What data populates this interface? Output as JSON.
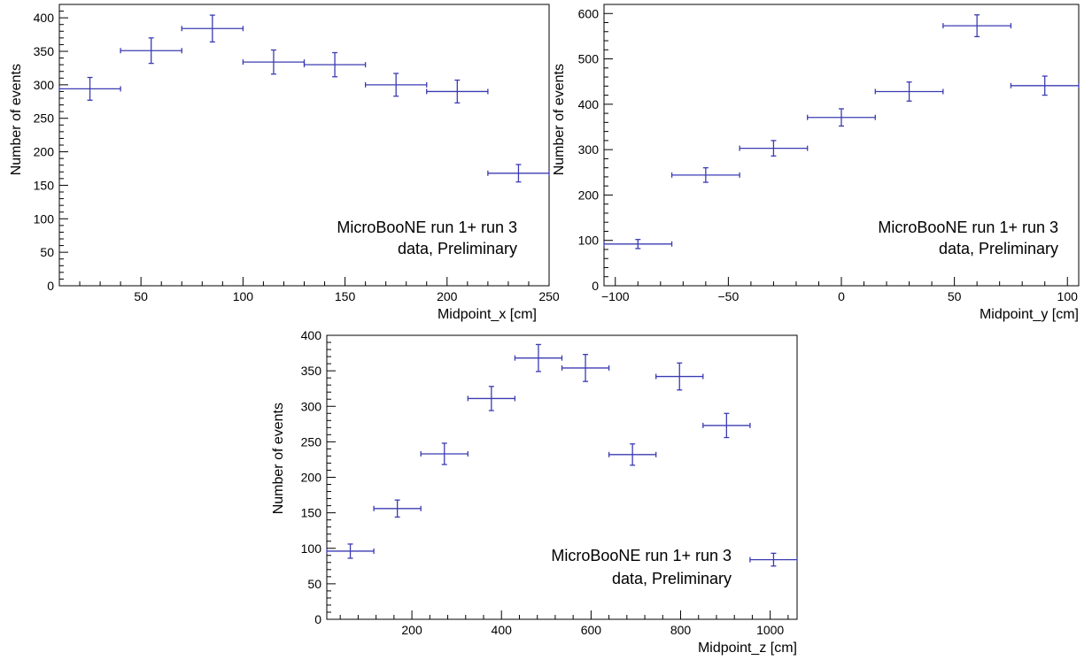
{
  "chart_data": [
    {
      "type": "scatter",
      "style": "histogram-errorbars",
      "xlabel": "Midpoint_x [cm]",
      "ylabel": "Number of events",
      "xlim": [
        10,
        250
      ],
      "ylim": [
        0,
        420
      ],
      "xticks": [
        50,
        100,
        150,
        200,
        250
      ],
      "yticks": [
        0,
        50,
        100,
        150,
        200,
        250,
        300,
        350,
        400
      ],
      "annotation": [
        "MicroBooNE run 1+ run 3",
        "data, Preliminary"
      ],
      "bin_edges": [
        10,
        40,
        70,
        100,
        130,
        160,
        190,
        220,
        250
      ],
      "values": [
        294,
        351,
        384,
        334,
        330,
        300,
        290,
        168
      ],
      "errors": [
        17,
        19,
        20,
        18,
        18,
        17,
        17,
        13
      ],
      "color": "#3b3bb3"
    },
    {
      "type": "scatter",
      "style": "histogram-errorbars",
      "xlabel": "Midpoint_y [cm]",
      "ylabel": "Number of events",
      "xlim": [
        -105,
        105
      ],
      "ylim": [
        0,
        620
      ],
      "xticks": [
        -100,
        -50,
        0,
        50,
        100
      ],
      "yticks": [
        0,
        100,
        200,
        300,
        400,
        500,
        600
      ],
      "tick_labels_x": [
        "−100",
        "−50",
        "0",
        "50",
        "100"
      ],
      "annotation": [
        "MicroBooNE run 1+ run 3",
        "data, Preliminary"
      ],
      "bin_edges": [
        -105,
        -75,
        -45,
        -15,
        15,
        45,
        75,
        105
      ],
      "values": [
        92,
        244,
        303,
        371,
        428,
        573,
        441
      ],
      "errors": [
        10,
        16,
        17,
        19,
        21,
        24,
        21
      ],
      "color": "#3b3bb3"
    },
    {
      "type": "scatter",
      "style": "histogram-errorbars",
      "xlabel": "Midpoint_z [cm]",
      "ylabel": "Number of events",
      "xlim": [
        10,
        1060
      ],
      "ylim": [
        0,
        400
      ],
      "xticks": [
        200,
        400,
        600,
        800,
        1000
      ],
      "yticks": [
        0,
        50,
        100,
        150,
        200,
        250,
        300,
        350,
        400
      ],
      "annotation": [
        "MicroBooNE run 1+ run 3",
        "data, Preliminary"
      ],
      "bin_edges": [
        10,
        115,
        220,
        325,
        430,
        535,
        640,
        745,
        850,
        955,
        1060
      ],
      "values": [
        96,
        156,
        233,
        311,
        368,
        354,
        232,
        342,
        273,
        84
      ],
      "errors": [
        10,
        12,
        15,
        17,
        19,
        19,
        15,
        19,
        17,
        9
      ],
      "color": "#3b3bb3"
    }
  ]
}
